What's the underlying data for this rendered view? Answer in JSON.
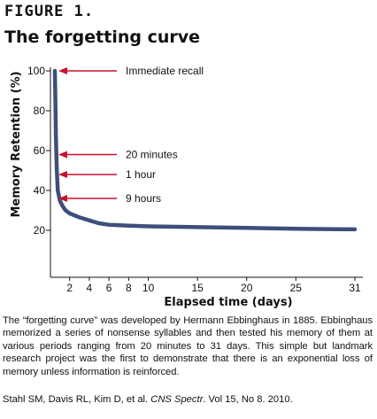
{
  "figure_label": "FIGURE 1.",
  "title": "The forgetting curve",
  "caption": "The “forgetting curve” was developed by Hermann Ebbinghaus in 1885. Ebbinghaus memorized a series of nonsense syllables and then tested his memory of them at various periods ranging from 20 minutes to 31 days.  This simple but landmark research project was the first to demonstrate that there is an exponential loss of memory unless information is reinforced.",
  "citation": {
    "authors": "Stahl SM, Davis RL, Kim D, et al. ",
    "journal": "CNS Spectr",
    "details": ". Vol 15, No 8. 2010."
  },
  "chart_data": {
    "type": "line",
    "title": "The forgetting curve",
    "xlabel": "Elapsed time (days)",
    "ylabel": "Memory Retention (%)",
    "xlim": [
      0,
      31
    ],
    "ylim": [
      10,
      100
    ],
    "xticks": [
      2,
      4,
      6,
      8,
      10,
      15,
      20,
      25,
      31
    ],
    "yticks": [
      20,
      40,
      60,
      80,
      100
    ],
    "series": [
      {
        "x": [
          0.5,
          0.55,
          0.6,
          0.65,
          0.7,
          0.8,
          1.0,
          1.3,
          1.6,
          2,
          2.5,
          3,
          4,
          5,
          6,
          8,
          10,
          15,
          20,
          25,
          31
        ],
        "y": [
          100,
          85,
          68,
          58,
          50,
          40,
          35,
          32,
          30,
          28.5,
          27.5,
          26.5,
          25,
          23.5,
          22.8,
          22.3,
          22,
          21.6,
          21.2,
          20.8,
          20.5
        ]
      }
    ],
    "annotations": [
      {
        "label": "Immediate recall",
        "y": 100
      },
      {
        "label": "20 minutes",
        "y": 58
      },
      {
        "label": "1 hour",
        "y": 48
      },
      {
        "label": "9 hours",
        "y": 36
      }
    ],
    "line_color": "#3d4f7a",
    "arrow_color": "#c8102e",
    "grid": false,
    "legend": "none"
  }
}
